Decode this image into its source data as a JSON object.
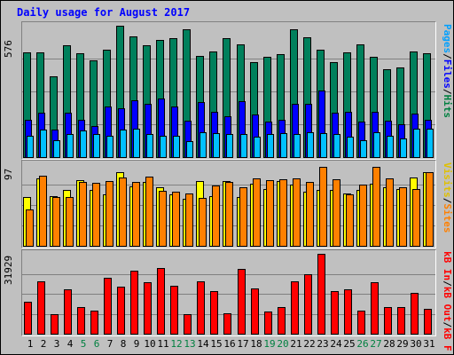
{
  "title": "Daily usage for August 2017",
  "colors": {
    "hits": "#00805c",
    "files": "#0000ff",
    "pages": "#00c0ff",
    "visits": "#ffff00",
    "sites": "#ff8000",
    "kb_in": "#ff0000",
    "kb_out": "#ff0000",
    "kb_f": "#ff0000"
  },
  "legend": {
    "top": {
      "pages": "Pages",
      "sep1": "/",
      "files": "Files",
      "sep2": "/",
      "hits": "Hits"
    },
    "middle": {
      "visits": "Visits",
      "sep1": "/",
      "sites": "Sites"
    },
    "bottom": {
      "kb_in": "kB In",
      "sep1": "/",
      "kb_out": "kB Out",
      "sep2": "/",
      "kb_f": "kB F"
    }
  },
  "chart_data": [
    {
      "type": "bar",
      "max_label": "576",
      "ylim": [
        0,
        576
      ],
      "categories": [
        "1",
        "2",
        "3",
        "4",
        "5",
        "6",
        "7",
        "8",
        "9",
        "10",
        "11",
        "12",
        "13",
        "14",
        "15",
        "16",
        "17",
        "18",
        "19",
        "20",
        "21",
        "22",
        "23",
        "24",
        "25",
        "26",
        "27",
        "28",
        "29",
        "30",
        "31"
      ],
      "weekend_days": [
        "5",
        "6",
        "12",
        "13",
        "19",
        "20",
        "26",
        "27"
      ],
      "series": [
        {
          "name": "Hits",
          "values": [
            460,
            460,
            355,
            490,
            455,
            425,
            470,
            576,
            530,
            490,
            515,
            520,
            560,
            445,
            465,
            520,
            495,
            415,
            440,
            450,
            560,
            525,
            470,
            415,
            460,
            495,
            440,
            385,
            395,
            465,
            455
          ]
        },
        {
          "name": "Files",
          "values": [
            165,
            195,
            120,
            195,
            165,
            135,
            220,
            215,
            250,
            235,
            255,
            220,
            160,
            240,
            200,
            180,
            245,
            185,
            155,
            165,
            235,
            235,
            290,
            195,
            200,
            155,
            200,
            160,
            145,
            190,
            165
          ]
        },
        {
          "name": "Pages",
          "values": [
            95,
            120,
            75,
            100,
            115,
            100,
            95,
            120,
            125,
            100,
            95,
            95,
            70,
            110,
            105,
            100,
            100,
            90,
            100,
            105,
            100,
            110,
            105,
            100,
            90,
            75,
            110,
            95,
            80,
            125,
            125
          ]
        }
      ]
    },
    {
      "type": "bar",
      "max_label": "97",
      "ylim": [
        0,
        97
      ],
      "categories": [
        "1",
        "2",
        "3",
        "4",
        "5",
        "6",
        "7",
        "8",
        "9",
        "10",
        "11",
        "12",
        "13",
        "14",
        "15",
        "16",
        "17",
        "18",
        "19",
        "20",
        "21",
        "22",
        "23",
        "24",
        "25",
        "26",
        "27",
        "28",
        "29",
        "30",
        "31"
      ],
      "series": [
        {
          "name": "Visits",
          "values": [
            58,
            80,
            59,
            66,
            78,
            66,
            61,
            88,
            71,
            76,
            70,
            61,
            56,
            77,
            59,
            77,
            58,
            74,
            68,
            77,
            73,
            64,
            66,
            66,
            62,
            66,
            74,
            70,
            68,
            81,
            88
          ]
        },
        {
          "name": "Sites",
          "values": [
            43,
            83,
            58,
            58,
            76,
            75,
            77,
            81,
            76,
            82,
            65,
            64,
            62,
            57,
            72,
            76,
            70,
            80,
            78,
            79,
            80,
            76,
            94,
            79,
            61,
            73,
            94,
            80,
            70,
            67,
            88
          ]
        }
      ]
    },
    {
      "type": "bar",
      "max_label": "31929",
      "ylim": [
        0,
        31929
      ],
      "categories": [
        "1",
        "2",
        "3",
        "4",
        "5",
        "6",
        "7",
        "8",
        "9",
        "10",
        "11",
        "12",
        "13",
        "14",
        "15",
        "16",
        "17",
        "18",
        "19",
        "20",
        "21",
        "22",
        "23",
        "24",
        "25",
        "26",
        "27",
        "28",
        "29",
        "30",
        "31"
      ],
      "series": [
        {
          "name": "kB In",
          "values": [
            12800,
            21100,
            7900,
            17600,
            10500,
            9200,
            22200,
            18800,
            25200,
            20400,
            26400,
            19100,
            7900,
            21100,
            17200,
            8200,
            25800,
            18000,
            8800,
            10500,
            21100,
            23800,
            31929,
            16900,
            17600,
            9200,
            20400,
            10500,
            10500,
            16200,
            9900
          ]
        }
      ]
    }
  ],
  "axis_label_color_weekday": "#000000",
  "axis_label_color_weekend": "#008040"
}
